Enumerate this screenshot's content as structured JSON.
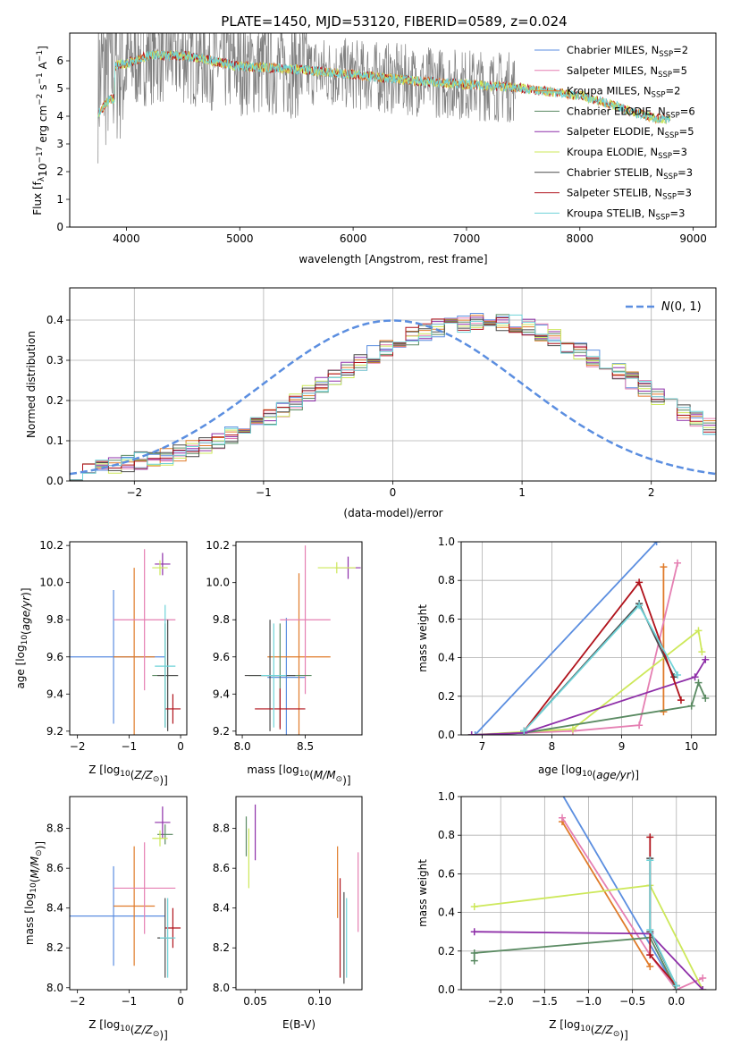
{
  "title": "PLATE=1450, MJD=53120, FIBERID=0589, z=0.024",
  "colors": {
    "Chabrier MILES": "#5b8ee0",
    "Salpeter MILES": "#e57fb2",
    "Kroupa MILES": "#e07b2a",
    "Chabrier ELODIE": "#5a8a62",
    "Salpeter ELODIE": "#8e2fa8",
    "Kroupa ELODIE": "#cde85a",
    "Chabrier STELIB": "#4a4a4a",
    "Salpeter STELIB": "#b0121b",
    "Kroupa STELIB": "#6fd3d8",
    "data": "#808080",
    "normal": "#5b8ee0"
  },
  "chart_data": [
    {
      "id": "spectrum",
      "type": "line",
      "xlabel": "wavelength [Angstrom, rest frame]",
      "ylabel": "Flux [f_λ10^-17 erg cm^-2 s^-1 A^-1]",
      "xlim": [
        3500,
        9200
      ],
      "ylim": [
        0,
        7
      ],
      "xticks": [
        4000,
        5000,
        6000,
        7000,
        8000,
        9000
      ],
      "yticks": [
        0,
        1,
        2,
        3,
        4,
        5,
        6
      ],
      "data_range": [
        3750,
        7430
      ],
      "model_range": [
        3750,
        8800
      ],
      "continuum": [
        [
          3750,
          5.3
        ],
        [
          3850,
          5.8
        ],
        [
          4000,
          5.9
        ],
        [
          4200,
          6.2
        ],
        [
          4500,
          6.2
        ],
        [
          5000,
          5.8
        ],
        [
          5500,
          5.7
        ],
        [
          6000,
          5.5
        ],
        [
          6500,
          5.3
        ],
        [
          7000,
          5.15
        ],
        [
          7400,
          5.05
        ],
        [
          7600,
          4.95
        ],
        [
          8000,
          4.75
        ],
        [
          8300,
          4.4
        ],
        [
          8500,
          4.1
        ],
        [
          8700,
          3.9
        ],
        [
          8800,
          3.9
        ]
      ],
      "legend": [
        {
          "name": "Chabrier MILES, N_SSP=2",
          "base": "Chabrier MILES, N",
          "sub": "SSP",
          "tail": "=2",
          "color": "Chabrier MILES"
        },
        {
          "name": "Salpeter MILES, N_SSP=5",
          "base": "Salpeter MILES, N",
          "sub": "SSP",
          "tail": "=5",
          "color": "Salpeter MILES"
        },
        {
          "name": "Kroupa MILES, N_SSP=2",
          "base": "Kroupa MILES, N",
          "sub": "SSP",
          "tail": "=2",
          "color": "Kroupa MILES"
        },
        {
          "name": "Chabrier ELODIE, N_SSP=6",
          "base": "Chabrier ELODIE, N",
          "sub": "SSP",
          "tail": "=6",
          "color": "Chabrier ELODIE"
        },
        {
          "name": "Salpeter ELODIE, N_SSP=5",
          "base": "Salpeter ELODIE, N",
          "sub": "SSP",
          "tail": "=5",
          "color": "Salpeter ELODIE"
        },
        {
          "name": "Kroupa ELODIE, N_SSP=3",
          "base": "Kroupa ELODIE, N",
          "sub": "SSP",
          "tail": "=3",
          "color": "Kroupa ELODIE"
        },
        {
          "name": "Chabrier STELIB, N_SSP=3",
          "base": "Chabrier STELIB, N",
          "sub": "SSP",
          "tail": "=3",
          "color": "Chabrier STELIB"
        },
        {
          "name": "Salpeter STELIB, N_SSP=3",
          "base": "Salpeter STELIB, N",
          "sub": "SSP",
          "tail": "=3",
          "color": "Salpeter STELIB"
        },
        {
          "name": "Kroupa STELIB, N_SSP=3",
          "base": "Kroupa STELIB, N",
          "sub": "SSP",
          "tail": "=3",
          "color": "Kroupa STELIB"
        }
      ]
    },
    {
      "id": "residuals",
      "type": "line",
      "xlabel": "(data-model)/error",
      "ylabel": "Normed distribution",
      "xlim": [
        -2.5,
        2.5
      ],
      "ylim": [
        0,
        0.48
      ],
      "xticks": [
        -2,
        -1,
        0,
        1,
        2
      ],
      "yticks": [
        0.0,
        0.1,
        0.2,
        0.3,
        0.4
      ],
      "grid": true,
      "legend": {
        "label": "N(0,1)",
        "position": "top-right"
      },
      "bin_edges_start": -2.5,
      "bin_width": 0.1,
      "base_series": [
        0.025,
        0.03,
        0.035,
        0.04,
        0.045,
        0.05,
        0.055,
        0.06,
        0.07,
        0.08,
        0.09,
        0.1,
        0.115,
        0.13,
        0.145,
        0.16,
        0.18,
        0.195,
        0.215,
        0.235,
        0.255,
        0.275,
        0.295,
        0.315,
        0.33,
        0.345,
        0.36,
        0.37,
        0.38,
        0.39,
        0.39,
        0.395,
        0.4,
        0.395,
        0.39,
        0.38,
        0.37,
        0.355,
        0.34,
        0.325,
        0.305,
        0.29,
        0.27,
        0.25,
        0.23,
        0.21,
        0.19,
        0.17,
        0.155,
        0.135,
        0.12,
        0.105,
        0.09,
        0.08,
        0.07,
        0.06,
        0.05,
        0.045,
        0.04,
        0.035,
        0.03,
        0.028,
        0.025,
        0.022,
        0.02,
        0.02,
        0.02,
        0.02,
        0.02,
        0.02,
        0.02,
        0.02,
        0.02,
        0.02,
        0.02,
        0.02,
        0.02,
        0.02,
        0.02,
        0.02
      ]
    },
    {
      "id": "age_vs_Z",
      "type": "scatter",
      "xlabel": "Z [log10(Z/Z⊙)]",
      "ylabel": "age [log10(age/yr)]",
      "xlim": [
        -2.15,
        0.12
      ],
      "ylim": [
        9.18,
        10.22
      ],
      "xticks": [
        -2,
        -1,
        0
      ],
      "yticks": [
        9.2,
        9.4,
        9.6,
        9.8,
        10.0,
        10.2
      ],
      "points": [
        {
          "model": "Chabrier MILES",
          "x": -1.3,
          "y": 9.6,
          "xerr": 1.0,
          "yerr": 0.36
        },
        {
          "model": "Kroupa MILES",
          "x": -0.9,
          "y": 9.6,
          "xerr": 0.4,
          "yerr": 0.48
        },
        {
          "model": "Salpeter MILES",
          "x": -0.7,
          "y": 9.8,
          "xerr": 0.6,
          "yerr": 0.38
        },
        {
          "model": "Chabrier ELODIE",
          "x": -0.3,
          "y": 9.5,
          "xerr": 0.25,
          "yerr": 0.28
        },
        {
          "model": "Salpeter ELODIE",
          "x": -0.35,
          "y": 10.1,
          "xerr": 0.15,
          "yerr": 0.06
        },
        {
          "model": "Kroupa ELODIE",
          "x": -0.4,
          "y": 10.08,
          "xerr": 0.15,
          "yerr": 0.04
        },
        {
          "model": "Chabrier STELIB",
          "x": -0.25,
          "y": 9.5,
          "xerr": 0.2,
          "yerr": 0.3
        },
        {
          "model": "Salpeter STELIB",
          "x": -0.15,
          "y": 9.32,
          "xerr": 0.15,
          "yerr": 0.08
        },
        {
          "model": "Kroupa STELIB",
          "x": -0.3,
          "y": 9.55,
          "xerr": 0.2,
          "yerr": 0.33
        }
      ]
    },
    {
      "id": "age_vs_mass",
      "type": "scatter",
      "xlabel": "mass [log10(M/M⊙)]",
      "ylabel": "",
      "xlim": [
        7.95,
        8.95
      ],
      "ylim": [
        9.18,
        10.22
      ],
      "xticks": [
        8.0,
        8.5
      ],
      "yticks": [
        9.2,
        9.4,
        9.6,
        9.8,
        10.0,
        10.2
      ],
      "points": [
        {
          "model": "Chabrier MILES",
          "x": 8.35,
          "y": 9.49,
          "xerr": 0.15,
          "yerr": 0.32
        },
        {
          "model": "Kroupa MILES",
          "x": 8.45,
          "y": 9.6,
          "xerr": 0.25,
          "yerr": 0.45
        },
        {
          "model": "Salpeter MILES",
          "x": 8.5,
          "y": 9.8,
          "xerr": 0.2,
          "yerr": 0.4
        },
        {
          "model": "Chabrier ELODIE",
          "x": 8.3,
          "y": 9.5,
          "xerr": 0.25,
          "yerr": 0.28
        },
        {
          "model": "Salpeter ELODIE",
          "x": 8.84,
          "y": 10.08,
          "xerr": 0.1,
          "yerr": 0.06
        },
        {
          "model": "Kroupa ELODIE",
          "x": 8.75,
          "y": 10.08,
          "xerr": 0.15,
          "yerr": 0.03
        },
        {
          "model": "Chabrier STELIB",
          "x": 8.22,
          "y": 9.5,
          "xerr": 0.2,
          "yerr": 0.3
        },
        {
          "model": "Salpeter STELIB",
          "x": 8.3,
          "y": 9.32,
          "xerr": 0.2,
          "yerr": 0.11
        },
        {
          "model": "Kroupa STELIB",
          "x": 8.25,
          "y": 9.5,
          "xerr": 0.1,
          "yerr": 0.28
        }
      ]
    },
    {
      "id": "weight_vs_age",
      "type": "line",
      "xlabel": "age [log10(age/yr)]",
      "ylabel": "mass weight",
      "xlim": [
        6.7,
        10.35
      ],
      "ylim": [
        0,
        1.0
      ],
      "xticks": [
        7,
        8,
        9,
        10
      ],
      "yticks": [
        0.0,
        0.2,
        0.4,
        0.6,
        0.8,
        1.0
      ],
      "grid": true,
      "series": [
        {
          "model": "Chabrier MILES",
          "x": [
            6.9,
            9.5
          ],
          "y": [
            0.0,
            1.0
          ]
        },
        {
          "model": "Kroupa MILES",
          "x": [
            9.6,
            9.6
          ],
          "y": [
            0.87,
            0.12
          ]
        },
        {
          "model": "Salpeter MILES",
          "x": [
            6.85,
            8.3,
            9.25,
            9.8
          ],
          "y": [
            0.0,
            0.02,
            0.05,
            0.89
          ]
        },
        {
          "model": "Kroupa ELODIE",
          "x": [
            6.85,
            8.3,
            10.1,
            10.15
          ],
          "y": [
            0.0,
            0.03,
            0.54,
            0.43
          ]
        },
        {
          "model": "Chabrier ELODIE",
          "x": [
            6.85,
            7.6,
            10.0,
            10.1,
            10.2
          ],
          "y": [
            0.0,
            0.01,
            0.15,
            0.27,
            0.19
          ]
        },
        {
          "model": "Salpeter ELODIE",
          "x": [
            6.85,
            7.6,
            10.05,
            10.2
          ],
          "y": [
            0.0,
            0.01,
            0.3,
            0.39
          ]
        },
        {
          "model": "Chabrier STELIB",
          "x": [
            7.6,
            9.25,
            9.75
          ],
          "y": [
            0.02,
            0.68,
            0.3
          ]
        },
        {
          "model": "Salpeter STELIB",
          "x": [
            7.6,
            9.25,
            9.85
          ],
          "y": [
            0.02,
            0.79,
            0.18
          ]
        },
        {
          "model": "Kroupa STELIB",
          "x": [
            7.6,
            9.25,
            9.8
          ],
          "y": [
            0.02,
            0.67,
            0.31
          ]
        }
      ]
    },
    {
      "id": "mass_vs_Z",
      "type": "scatter",
      "xlabel": "Z [log10(Z/Z⊙)]",
      "ylabel": "mass [log10(M/M⊙)]",
      "xlim": [
        -2.15,
        0.12
      ],
      "ylim": [
        7.99,
        8.96
      ],
      "xticks": [
        -2,
        -1,
        0
      ],
      "yticks": [
        8.0,
        8.2,
        8.4,
        8.6,
        8.8
      ],
      "points": [
        {
          "model": "Chabrier MILES",
          "x": -1.3,
          "y": 8.36,
          "xerr": 1.0,
          "yerr": 0.25
        },
        {
          "model": "Kroupa MILES",
          "x": -0.9,
          "y": 8.41,
          "xerr": 0.4,
          "yerr": 0.3
        },
        {
          "model": "Salpeter MILES",
          "x": -0.7,
          "y": 8.5,
          "xerr": 0.6,
          "yerr": 0.23
        },
        {
          "model": "Chabrier ELODIE",
          "x": -0.3,
          "y": 8.77,
          "xerr": 0.15,
          "yerr": 0.05
        },
        {
          "model": "Salpeter ELODIE",
          "x": -0.35,
          "y": 8.83,
          "xerr": 0.15,
          "yerr": 0.08
        },
        {
          "model": "Kroupa ELODIE",
          "x": -0.4,
          "y": 8.75,
          "xerr": 0.15,
          "yerr": 0.04
        },
        {
          "model": "Chabrier STELIB",
          "x": -0.3,
          "y": 8.25,
          "xerr": 0.15,
          "yerr": 0.2
        },
        {
          "model": "Salpeter STELIB",
          "x": -0.15,
          "y": 8.3,
          "xerr": 0.15,
          "yerr": 0.1
        },
        {
          "model": "Kroupa STELIB",
          "x": -0.25,
          "y": 8.25,
          "xerr": 0.15,
          "yerr": 0.2
        }
      ]
    },
    {
      "id": "mass_vs_EBV",
      "type": "scatter",
      "xlabel": "E(B-V)",
      "ylabel": "",
      "xlim": [
        0.035,
        0.133
      ],
      "ylim": [
        7.99,
        8.96
      ],
      "xticks": [
        0.05,
        0.1
      ],
      "xticklabels": [
        "0.05",
        "0.10"
      ],
      "yticks": [
        8.0,
        8.2,
        8.4,
        8.6,
        8.8
      ],
      "points": [
        {
          "model": "Chabrier ELODIE",
          "x": 0.043,
          "y": 8.76,
          "xerr": 0,
          "yerr": 0.1
        },
        {
          "model": "Kroupa ELODIE",
          "x": 0.045,
          "y": 8.65,
          "xerr": 0,
          "yerr": 0.15
        },
        {
          "model": "Salpeter ELODIE",
          "x": 0.05,
          "y": 8.78,
          "xerr": 0,
          "yerr": 0.14
        },
        {
          "model": "Kroupa MILES",
          "x": 0.114,
          "y": 8.53,
          "xerr": 0,
          "yerr": 0.18
        },
        {
          "model": "Salpeter STELIB",
          "x": 0.116,
          "y": 8.3,
          "xerr": 0,
          "yerr": 0.25
        },
        {
          "model": "Chabrier STELIB",
          "x": 0.119,
          "y": 8.25,
          "xerr": 0,
          "yerr": 0.23
        },
        {
          "model": "Kroupa STELIB",
          "x": 0.121,
          "y": 8.25,
          "xerr": 0,
          "yerr": 0.2
        },
        {
          "model": "Salpeter MILES",
          "x": 0.13,
          "y": 8.48,
          "xerr": 0,
          "yerr": 0.2
        }
      ]
    },
    {
      "id": "weight_vs_Z",
      "type": "line",
      "xlabel": "Z [log10(Z/Z⊙)]",
      "ylabel": "mass weight",
      "xlim": [
        -2.45,
        0.45
      ],
      "ylim": [
        0,
        1.0
      ],
      "xticks": [
        -2.0,
        -1.5,
        -1.0,
        -0.5,
        0.0
      ],
      "xticklabels": [
        "−2.0",
        "−1.5",
        "−1.0",
        "−0.5",
        "0.0"
      ],
      "yticks": [
        0.0,
        0.2,
        0.4,
        0.6,
        0.8,
        1.0
      ],
      "grid": true,
      "series": [
        {
          "model": "Chabrier MILES",
          "x": [
            -1.35,
            0.0
          ],
          "y": [
            1.05,
            0.0
          ]
        },
        {
          "model": "Kroupa MILES",
          "x": [
            -1.3,
            -0.3
          ],
          "y": [
            0.87,
            0.12
          ]
        },
        {
          "model": "Salpeter MILES",
          "x": [
            -1.3,
            -0.3,
            0.0,
            0.3
          ],
          "y": [
            0.89,
            0.18,
            0.0,
            0.06
          ]
        },
        {
          "model": "Kroupa ELODIE",
          "x": [
            -2.3,
            -0.3,
            0.3
          ],
          "y": [
            0.43,
            0.54,
            0.0
          ]
        },
        {
          "model": "Chabrier ELODIE",
          "x": [
            -2.3,
            -2.3,
            -0.3,
            0.0
          ],
          "y": [
            0.15,
            0.19,
            0.27,
            0.0
          ]
        },
        {
          "model": "Salpeter ELODIE",
          "x": [
            -2.3,
            -0.3,
            0.3
          ],
          "y": [
            0.3,
            0.29,
            0.0
          ]
        },
        {
          "model": "Chabrier STELIB",
          "x": [
            -0.3,
            -0.3,
            0.0
          ],
          "y": [
            0.68,
            0.3,
            0.02
          ]
        },
        {
          "model": "Salpeter STELIB",
          "x": [
            -0.3,
            -0.3,
            0.0
          ],
          "y": [
            0.79,
            0.18,
            0.02
          ]
        },
        {
          "model": "Kroupa STELIB",
          "x": [
            -0.3,
            -0.3,
            0.0
          ],
          "y": [
            0.67,
            0.31,
            0.02
          ]
        }
      ]
    }
  ]
}
